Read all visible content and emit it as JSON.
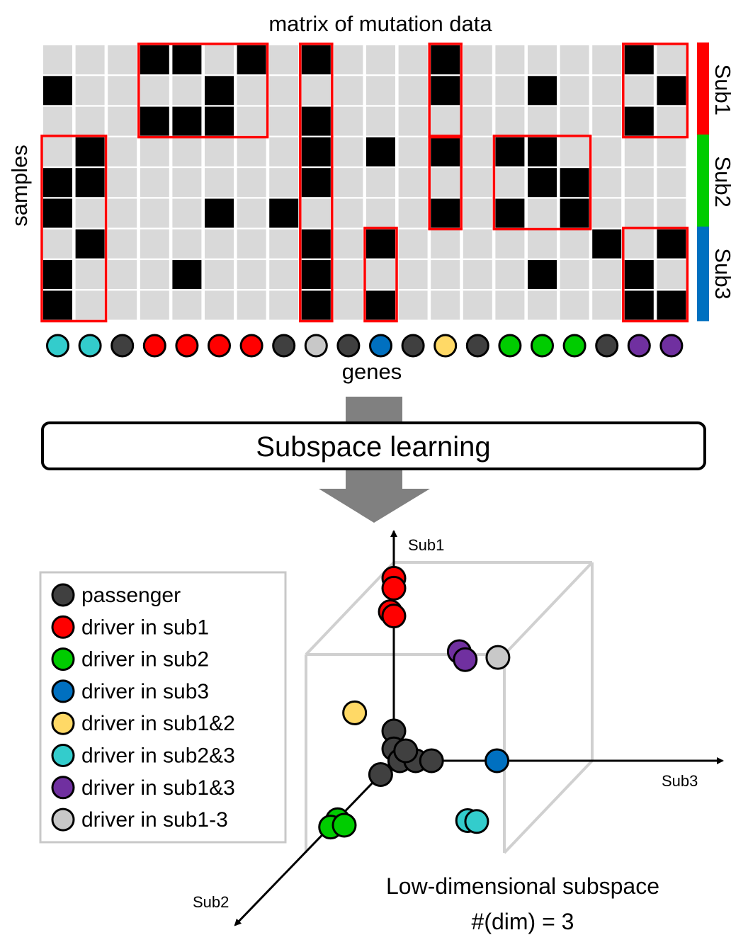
{
  "matrix": {
    "title": "matrix of mutation data",
    "row_axis_label": "samples",
    "col_axis_label": "genes",
    "cells": [
      [
        0,
        0,
        0,
        1,
        1,
        0,
        1,
        0,
        1,
        0,
        0,
        0,
        1,
        0,
        0,
        0,
        0,
        0,
        1,
        0
      ],
      [
        1,
        0,
        0,
        0,
        0,
        1,
        0,
        0,
        0,
        0,
        0,
        0,
        1,
        0,
        0,
        1,
        0,
        0,
        0,
        1
      ],
      [
        0,
        0,
        0,
        1,
        1,
        1,
        0,
        0,
        1,
        0,
        0,
        0,
        0,
        0,
        0,
        0,
        0,
        0,
        1,
        0
      ],
      [
        0,
        1,
        0,
        0,
        0,
        0,
        0,
        0,
        1,
        0,
        1,
        0,
        1,
        0,
        1,
        1,
        0,
        0,
        0,
        0
      ],
      [
        1,
        1,
        0,
        0,
        0,
        0,
        0,
        0,
        1,
        0,
        0,
        0,
        0,
        0,
        0,
        1,
        1,
        0,
        0,
        0
      ],
      [
        1,
        0,
        0,
        0,
        0,
        1,
        0,
        1,
        0,
        0,
        0,
        0,
        1,
        0,
        1,
        0,
        1,
        0,
        0,
        0
      ],
      [
        0,
        1,
        0,
        0,
        0,
        0,
        0,
        0,
        1,
        0,
        1,
        0,
        0,
        0,
        0,
        0,
        0,
        1,
        0,
        1
      ],
      [
        1,
        0,
        0,
        0,
        1,
        0,
        0,
        0,
        1,
        0,
        0,
        0,
        0,
        0,
        0,
        1,
        0,
        0,
        1,
        0
      ],
      [
        1,
        0,
        0,
        0,
        0,
        0,
        0,
        0,
        1,
        0,
        1,
        0,
        0,
        0,
        0,
        0,
        0,
        0,
        1,
        1
      ]
    ],
    "highlight_blocks": [
      {
        "rows": [
          0,
          2
        ],
        "cols": [
          3,
          6
        ]
      },
      {
        "rows": [
          0,
          8
        ],
        "cols": [
          8,
          8
        ]
      },
      {
        "rows": [
          0,
          2
        ],
        "cols": [
          12,
          12
        ]
      },
      {
        "rows": [
          0,
          2
        ],
        "cols": [
          18,
          19
        ]
      },
      {
        "rows": [
          3,
          8
        ],
        "cols": [
          0,
          1
        ]
      },
      {
        "rows": [
          3,
          5
        ],
        "cols": [
          12,
          12
        ]
      },
      {
        "rows": [
          3,
          5
        ],
        "cols": [
          14,
          16
        ]
      },
      {
        "rows": [
          6,
          8
        ],
        "cols": [
          10,
          10
        ]
      },
      {
        "rows": [
          6,
          8
        ],
        "cols": [
          18,
          19
        ]
      }
    ],
    "subgroups": [
      {
        "label": "Sub1",
        "rows": [
          0,
          2
        ],
        "color": "#ff0000"
      },
      {
        "label": "Sub2",
        "rows": [
          3,
          5
        ],
        "color": "#00cc00"
      },
      {
        "label": "Sub3",
        "rows": [
          6,
          8
        ],
        "color": "#0070c0"
      }
    ],
    "gene_classes": [
      "sub2and3",
      "sub2and3",
      "passenger",
      "sub1",
      "sub1",
      "sub1",
      "sub1",
      "passenger",
      "all",
      "passenger",
      "sub3",
      "passenger",
      "sub1and2",
      "passenger",
      "sub2",
      "sub2",
      "sub2",
      "passenger",
      "sub1and3",
      "sub1and3"
    ]
  },
  "process": {
    "label": "Subspace learning"
  },
  "subspace": {
    "axis_labels": {
      "sub1": "Sub1",
      "sub2": "Sub2",
      "sub3": "Sub3"
    },
    "caption_line1": "Low-dimensional subspace",
    "caption_line2": "#(dim) = 3",
    "clusters": [
      {
        "cls": "sub1",
        "points": [
          [
            0.0,
            0.0,
            0.92
          ],
          [
            0.0,
            0.0,
            0.87
          ],
          [
            0.04,
            0.0,
            0.77
          ],
          [
            0.0,
            0.0,
            0.73
          ]
        ]
      },
      {
        "cls": "sub2",
        "points": [
          [
            0.64,
            0.0,
            0.0
          ],
          [
            0.72,
            0.0,
            0.0
          ],
          [
            0.7,
            0.06,
            0.0
          ]
        ]
      },
      {
        "cls": "sub3",
        "points": [
          [
            0.0,
            0.52,
            0.0
          ]
        ]
      },
      {
        "cls": "sub1and2",
        "points": [
          [
            0.04,
            -0.18,
            0.26
          ]
        ]
      },
      {
        "cls": "sub2and3",
        "points": [
          [
            0.65,
            0.66,
            0.0
          ],
          [
            0.66,
            0.71,
            0.0
          ]
        ]
      },
      {
        "cls": "sub1and3",
        "points": [
          [
            0.0,
            0.33,
            0.55
          ],
          [
            0.0,
            0.36,
            0.51
          ]
        ]
      },
      {
        "cls": "all",
        "points": [
          [
            0.17,
            0.6,
            0.6
          ]
        ]
      },
      {
        "cls": "passenger",
        "points": [
          [
            0.0,
            0.0,
            0.15
          ],
          [
            0.0,
            0.0,
            0.06
          ],
          [
            0.0,
            0.03,
            0.0
          ],
          [
            0.0,
            0.11,
            0.0
          ],
          [
            0.0,
            0.19,
            0.0
          ],
          [
            0.15,
            0.0,
            0.0
          ],
          [
            0.0,
            0.06,
            0.05
          ]
        ]
      }
    ]
  },
  "legend": {
    "items": [
      {
        "cls": "passenger",
        "label": "passenger"
      },
      {
        "cls": "sub1",
        "label": "driver in sub1"
      },
      {
        "cls": "sub2",
        "label": "driver in sub2"
      },
      {
        "cls": "sub3",
        "label": "driver in sub3"
      },
      {
        "cls": "sub1and2",
        "label": "driver in sub1&2"
      },
      {
        "cls": "sub2and3",
        "label": "driver in sub2&3"
      },
      {
        "cls": "sub1and3",
        "label": "driver in sub1&3"
      },
      {
        "cls": "all",
        "label": "driver in sub1-3"
      }
    ]
  },
  "colors": {
    "mutated": "#000000",
    "not_mutated": "#d9d9d9",
    "highlight": "#ff0000",
    "arrow": "#808080",
    "cube": "#d0d0d0",
    "passenger": "#404040",
    "sub1": "#ff0000",
    "sub2": "#00cc00",
    "sub3": "#0070c0",
    "sub1and2": "#ffd966",
    "sub2and3": "#33cccc",
    "sub1and3": "#7030a0",
    "all": "#c8c8c8"
  }
}
